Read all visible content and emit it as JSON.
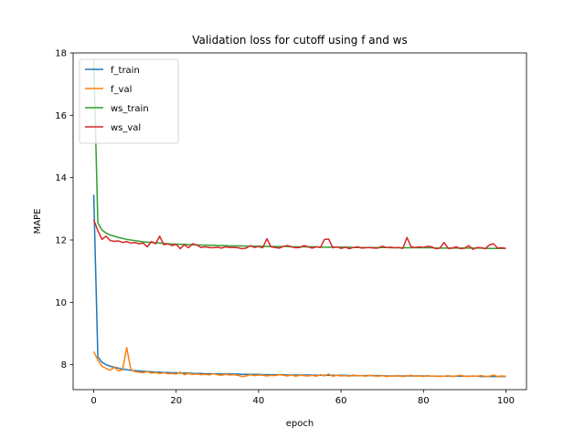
{
  "chart_data": {
    "type": "line",
    "title": "Validation loss for cutoff using f and ws",
    "xlabel": "epoch",
    "ylabel": "MAPE",
    "xlim": [
      -5,
      105
    ],
    "ylim": [
      7.2,
      18
    ],
    "xticks": [
      0,
      20,
      40,
      60,
      80,
      100
    ],
    "yticks": [
      8,
      10,
      12,
      14,
      16,
      18
    ],
    "grid": false,
    "legend_position": "top-left",
    "series": [
      {
        "name": "f_train",
        "color": "#1f77b4",
        "values": [
          13.45,
          8.25,
          8.08,
          8.0,
          7.95,
          7.92,
          7.89,
          7.86,
          7.84,
          7.82,
          7.81,
          7.8,
          7.79,
          7.78,
          7.77,
          7.76,
          7.76,
          7.75,
          7.75,
          7.74,
          7.74,
          7.73,
          7.73,
          7.73,
          7.72,
          7.72,
          7.72,
          7.71,
          7.71,
          7.71,
          7.71,
          7.7,
          7.7,
          7.7,
          7.7,
          7.7,
          7.69,
          7.69,
          7.69,
          7.69,
          7.69,
          7.68,
          7.68,
          7.68,
          7.68,
          7.68,
          7.68,
          7.67,
          7.67,
          7.67,
          7.67,
          7.67,
          7.67,
          7.67,
          7.66,
          7.66,
          7.66,
          7.66,
          7.66,
          7.66,
          7.66,
          7.66,
          7.65,
          7.65,
          7.65,
          7.65,
          7.65,
          7.65,
          7.65,
          7.65,
          7.65,
          7.64,
          7.64,
          7.64,
          7.64,
          7.64,
          7.64,
          7.64,
          7.64,
          7.64,
          7.64,
          7.64,
          7.63,
          7.63,
          7.63,
          7.63,
          7.63,
          7.63,
          7.63,
          7.63,
          7.63,
          7.63,
          7.63,
          7.63,
          7.62,
          7.62,
          7.62,
          7.62,
          7.62,
          7.62,
          7.62
        ]
      },
      {
        "name": "f_val",
        "color": "#ff7f0e",
        "values": [
          8.42,
          8.15,
          7.95,
          7.88,
          7.82,
          7.92,
          7.8,
          7.84,
          8.55,
          7.85,
          7.78,
          7.76,
          7.74,
          7.78,
          7.73,
          7.75,
          7.72,
          7.74,
          7.71,
          7.72,
          7.7,
          7.76,
          7.68,
          7.72,
          7.69,
          7.7,
          7.68,
          7.69,
          7.67,
          7.71,
          7.68,
          7.66,
          7.69,
          7.67,
          7.68,
          7.66,
          7.62,
          7.64,
          7.68,
          7.65,
          7.67,
          7.66,
          7.64,
          7.66,
          7.65,
          7.68,
          7.66,
          7.64,
          7.67,
          7.63,
          7.66,
          7.65,
          7.64,
          7.66,
          7.63,
          7.68,
          7.64,
          7.7,
          7.63,
          7.66,
          7.64,
          7.65,
          7.63,
          7.67,
          7.64,
          7.65,
          7.63,
          7.66,
          7.64,
          7.63,
          7.65,
          7.62,
          7.64,
          7.63,
          7.65,
          7.62,
          7.64,
          7.66,
          7.63,
          7.64,
          7.62,
          7.65,
          7.63,
          7.64,
          7.62,
          7.63,
          7.65,
          7.62,
          7.64,
          7.66,
          7.63,
          7.62,
          7.64,
          7.63,
          7.65,
          7.62,
          7.63,
          7.67,
          7.62,
          7.64,
          7.63
        ]
      },
      {
        "name": "ws_train",
        "color": "#2ca02c",
        "values": [
          17.8,
          12.55,
          12.32,
          12.22,
          12.16,
          12.12,
          12.08,
          12.05,
          12.02,
          12.0,
          11.98,
          11.96,
          11.94,
          11.93,
          11.92,
          11.91,
          11.9,
          11.89,
          11.88,
          11.87,
          11.87,
          11.86,
          11.86,
          11.85,
          11.85,
          11.84,
          11.84,
          11.83,
          11.83,
          11.83,
          11.82,
          11.82,
          11.82,
          11.81,
          11.81,
          11.81,
          11.81,
          11.8,
          11.8,
          11.8,
          11.8,
          11.8,
          11.79,
          11.79,
          11.79,
          11.79,
          11.79,
          11.79,
          11.78,
          11.78,
          11.78,
          11.78,
          11.78,
          11.78,
          11.78,
          11.77,
          11.77,
          11.77,
          11.77,
          11.77,
          11.77,
          11.77,
          11.77,
          11.76,
          11.76,
          11.76,
          11.76,
          11.76,
          11.76,
          11.76,
          11.76,
          11.76,
          11.75,
          11.75,
          11.75,
          11.75,
          11.75,
          11.75,
          11.75,
          11.75,
          11.75,
          11.75,
          11.75,
          11.74,
          11.74,
          11.74,
          11.74,
          11.74,
          11.74,
          11.74,
          11.74,
          11.74,
          11.74,
          11.74,
          11.74,
          11.73,
          11.73,
          11.73,
          11.73,
          11.73,
          11.73
        ]
      },
      {
        "name": "ws_val",
        "color": "#d62728",
        "values": [
          12.65,
          12.3,
          12.02,
          12.12,
          11.98,
          11.96,
          11.97,
          11.92,
          11.95,
          11.9,
          11.92,
          11.88,
          11.9,
          11.78,
          11.95,
          11.88,
          12.12,
          11.85,
          11.88,
          11.82,
          11.86,
          11.72,
          11.85,
          11.75,
          11.88,
          11.84,
          11.76,
          11.78,
          11.76,
          11.75,
          11.77,
          11.74,
          11.78,
          11.76,
          11.76,
          11.75,
          11.72,
          11.74,
          11.82,
          11.76,
          11.79,
          11.75,
          12.04,
          11.78,
          11.76,
          11.74,
          11.79,
          11.82,
          11.78,
          11.75,
          11.76,
          11.82,
          11.78,
          11.74,
          11.78,
          11.76,
          12.02,
          12.03,
          11.75,
          11.78,
          11.73,
          11.77,
          11.72,
          11.76,
          11.78,
          11.74,
          11.75,
          11.76,
          11.74,
          11.74,
          11.8,
          11.76,
          11.77,
          11.75,
          11.76,
          11.73,
          12.08,
          11.78,
          11.76,
          11.78,
          11.76,
          11.8,
          11.78,
          11.72,
          11.74,
          11.92,
          11.73,
          11.74,
          11.78,
          11.72,
          11.74,
          11.82,
          11.7,
          11.76,
          11.75,
          11.72,
          11.84,
          11.88,
          11.74,
          11.75,
          11.73
        ]
      }
    ]
  }
}
